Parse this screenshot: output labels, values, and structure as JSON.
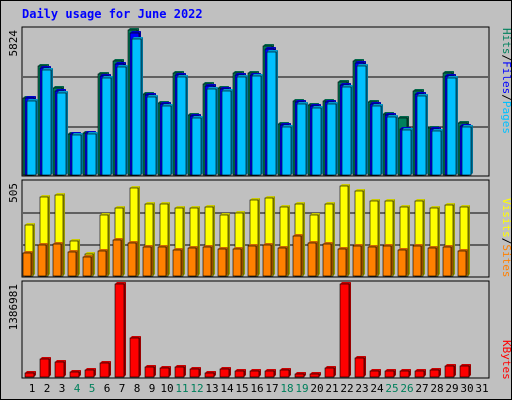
{
  "title": "Daily usage for June 2022",
  "colors": {
    "hits": "#00805c",
    "files": "#0000ff",
    "pages": "#00c0ff",
    "visits": "#ffff00",
    "sites": "#ff8000",
    "kbytes": "#ff0000",
    "weekend_day": "#00805c",
    "weekday": "#000000"
  },
  "labels": {
    "max_hits": "5824",
    "max_visits": "505",
    "max_kbytes": "1386981",
    "pages": "Pages",
    "files": "Files",
    "hits": "Hits",
    "slash": "/",
    "sites": "Sites",
    "visits": "Visits",
    "kbytes": "KBytes"
  },
  "chart_data": {
    "type": "bar",
    "title": "Daily usage for June 2022",
    "categories": [
      "1",
      "2",
      "3",
      "4",
      "5",
      "6",
      "7",
      "8",
      "9",
      "10",
      "11",
      "12",
      "13",
      "14",
      "15",
      "16",
      "17",
      "18",
      "19",
      "20",
      "21",
      "22",
      "23",
      "24",
      "25",
      "26",
      "27",
      "28",
      "29",
      "30",
      "31"
    ],
    "weekend_days": [
      "4",
      "5",
      "11",
      "12",
      "18",
      "19",
      "25",
      "26"
    ],
    "panels": [
      {
        "name": "hits-files-pages",
        "ymax": 5824,
        "series": [
          {
            "name": "Hits",
            "values": [
              3080,
              4360,
              3500,
              1660,
              1700,
              4040,
              4560,
              5840,
              3240,
              2900,
              4080,
              2420,
              3640,
              3500,
              4080,
              4080,
              5200,
              2060,
              2980,
              2820,
              2980,
              3720,
              4560,
              2940,
              2460,
              2280,
              3380,
              1900,
              4100,
              2080,
              0
            ]
          },
          {
            "name": "Files",
            "values": [
              3080,
              4300,
              3380,
              1660,
              1700,
              3980,
              4440,
              5700,
              3200,
              2840,
              4020,
              2360,
              3560,
              3440,
              4020,
              4020,
              5060,
              2000,
              2920,
              2760,
              2940,
              3600,
              4480,
              2860,
              2400,
              1860,
              3240,
              1840,
              3980,
              1980,
              0
            ]
          },
          {
            "name": "Pages",
            "values": [
              2980,
              4200,
              3300,
              1600,
              1640,
              3900,
              4320,
              5460,
              3120,
              2760,
              3940,
              2280,
              3460,
              3360,
              3940,
              3960,
              4960,
              1940,
              2860,
              2680,
              2860,
              3520,
              4380,
              2780,
              2340,
              1800,
              3180,
              1780,
              3880,
              1920,
              0
            ]
          }
        ]
      },
      {
        "name": "visits-sites",
        "ymax": 505,
        "series": [
          {
            "name": "Visits",
            "values": [
              278,
              430,
              440,
              190,
              118,
              330,
              368,
              476,
              390,
              390,
              370,
              370,
              375,
              330,
              340,
              415,
              422,
              377,
              390,
              330,
              390,
              488,
              460,
              405,
              405,
              375,
              405,
              370,
              385,
              375,
              0
            ]
          },
          {
            "name": "Sites",
            "values": [
              125,
              170,
              175,
              130,
              105,
              135,
              195,
              180,
              155,
              155,
              140,
              150,
              155,
              145,
              145,
              165,
              170,
              150,
              215,
              180,
              175,
              145,
              165,
              160,
              165,
              140,
              165,
              150,
              155,
              135,
              0
            ]
          }
        ]
      },
      {
        "name": "kbytes",
        "ymax": 1386981,
        "series": [
          {
            "name": "KBytes",
            "values": [
              55000,
              265000,
              225000,
              75000,
              100000,
              215000,
              1386981,
              575000,
              150000,
              130000,
              150000,
              125000,
              65000,
              120000,
              85000,
              85000,
              90000,
              100000,
              45000,
              50000,
              140000,
              1386981,
              280000,
              90000,
              90000,
              90000,
              85000,
              110000,
              160000,
              170000,
              0
            ]
          }
        ]
      }
    ]
  }
}
